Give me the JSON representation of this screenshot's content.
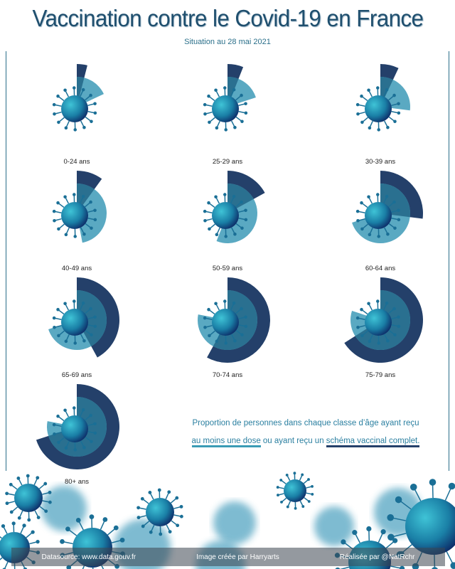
{
  "title": "Vaccination contre le Covid-19 en France",
  "subtitle": "Situation au 28 mai 2021",
  "legend": {
    "line1": "Proportion de personnes dans chaque classe d’âge ayant reçu",
    "dose": "au moins une dose",
    "mid": " ou ayant reçu un ",
    "complete": "schéma vaccinal complet."
  },
  "footer": {
    "source": "Datasource: www.data.gouv.fr",
    "image": "Image créée par Harryarts",
    "author": "Réalisée par @NatRchr"
  },
  "colors": {
    "one_dose": "#5aa9c2",
    "complete": "#24406a",
    "overlap": "#2a7090"
  },
  "chart_data": {
    "type": "radial-bar",
    "title": "Vaccination contre le Covid-19 en France",
    "categories": [
      "0-24 ans",
      "25-29 ans",
      "30-39 ans",
      "40-49 ans",
      "50-59 ans",
      "60-64 ans",
      "65-69 ans",
      "70-74 ans",
      "75-79 ans",
      "80+ ans"
    ],
    "series": [
      {
        "name": "au moins une dose",
        "unit": "%",
        "values": [
          18,
          20,
          27,
          47,
          56,
          70,
          70,
          78,
          80,
          78
        ]
      },
      {
        "name": "schéma vaccinal complet",
        "unit": "%",
        "values": [
          4,
          6,
          7,
          10,
          17,
          27,
          42,
          58,
          66,
          70
        ]
      }
    ]
  }
}
